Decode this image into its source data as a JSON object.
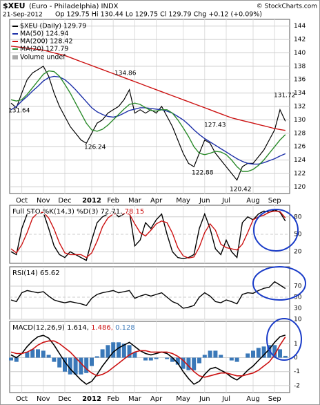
{
  "header": {
    "symbol": "$XEU",
    "name": "(Euro - Philadelphia) INDX",
    "credit": "© StockCharts.com",
    "date": "21-Sep-2012",
    "quote": "Op 129.75 Hi 130.44 Lo 129.75 Cl 129.79 Chg +0.12 (+0.09%)"
  },
  "chart_data": [
    {
      "type": "line",
      "categories": [
        null,
        null,
        "Oct",
        null,
        null,
        null,
        "Nov",
        null,
        null,
        null,
        "Dec",
        null,
        null,
        null,
        null,
        "2012",
        null,
        null,
        null,
        "Feb",
        null,
        null,
        null,
        "Mar",
        null,
        null,
        null,
        "Apr",
        null,
        null,
        null,
        null,
        "May",
        null,
        null,
        null,
        "Jun",
        null,
        null,
        null,
        "Jul",
        null,
        null,
        null,
        null,
        "Aug",
        null,
        null,
        null,
        "Sep",
        null,
        null
      ],
      "series": [
        {
          "name": "$XEU (Daily) 129.79",
          "color": "#000000",
          "values": [
            132.5,
            131.8,
            134,
            136,
            137,
            137.5,
            138,
            136.5,
            134,
            132,
            130.5,
            129,
            128,
            127,
            126.5,
            128,
            129.5,
            130,
            131,
            131.5,
            132,
            133,
            134.5,
            131,
            131.5,
            131,
            131.5,
            131,
            132,
            130.5,
            129,
            127,
            125,
            123.5,
            123,
            125,
            127,
            126.5,
            125,
            124,
            123,
            122,
            121,
            123,
            123.5,
            123.5,
            124.5,
            125.5,
            127,
            128.5,
            131.5,
            129.79
          ]
        },
        {
          "name": "MA(50) 124.94",
          "color": "#1c2fa8",
          "values": [
            131.5,
            132,
            132.8,
            133.5,
            134.3,
            135,
            135.8,
            136.3,
            136.5,
            136.4,
            136,
            135.3,
            134.5,
            133.6,
            132.7,
            131.8,
            131.2,
            130.8,
            130.5,
            130.4,
            130.6,
            131,
            131.4,
            131.6,
            131.8,
            131.8,
            131.7,
            131.6,
            131.5,
            131.3,
            131,
            130.5,
            130,
            129.3,
            128.5,
            127.8,
            127.2,
            126.7,
            126.2,
            125.7,
            125.2,
            124.7,
            124.2,
            123.8,
            123.5,
            123.4,
            123.4,
            123.6,
            123.9,
            124.2,
            124.6,
            124.94
          ]
        },
        {
          "name": "MA(200) 128.42",
          "color": "#cc1111",
          "values": [
            141.0,
            140.9,
            140.8,
            140.7,
            140.6,
            140.5,
            140.4,
            140.2,
            140.0,
            139.8,
            139.6,
            139.3,
            139.0,
            138.7,
            138.4,
            138.1,
            137.8,
            137.5,
            137.2,
            136.9,
            136.6,
            136.3,
            136.0,
            135.7,
            135.4,
            135.1,
            134.8,
            134.5,
            134.2,
            133.9,
            133.6,
            133.3,
            133.0,
            132.7,
            132.4,
            132.1,
            131.8,
            131.5,
            131.2,
            130.9,
            130.6,
            130.3,
            130.1,
            129.9,
            129.7,
            129.5,
            129.3,
            129.1,
            128.9,
            128.7,
            128.55,
            128.42
          ]
        },
        {
          "name": "MA(20) 127.79",
          "color": "#2a8a2a",
          "values": [
            133,
            132.8,
            133,
            133.8,
            134.8,
            135.8,
            136.8,
            137.3,
            137.2,
            136.5,
            135.3,
            134,
            132.5,
            131,
            129.5,
            128.5,
            128.3,
            128.6,
            129.2,
            130,
            130.8,
            131.6,
            132.3,
            132.5,
            132.3,
            131.8,
            131.4,
            131.3,
            131.5,
            131.5,
            131,
            130,
            128.8,
            127.5,
            126,
            125,
            124.8,
            125,
            125.3,
            125.2,
            124.8,
            124,
            123,
            122.3,
            122.3,
            122.6,
            123.2,
            124,
            125,
            126,
            127,
            127.79
          ]
        }
      ],
      "volume_label": "Volume undef",
      "annotations": [
        "131.64",
        "134.86",
        "126.24",
        "127.43",
        "122.88",
        "120.42",
        "131.72"
      ],
      "ylim": [
        119,
        145
      ],
      "yticks": [
        120,
        122,
        124,
        126,
        128,
        130,
        132,
        134,
        136,
        138,
        140,
        142,
        144
      ],
      "grid": true
    },
    {
      "type": "line",
      "title": "Full STO %K(14,3) %D(3)",
      "series": [
        {
          "label": "72.71,",
          "color": "#000000",
          "values": [
            20,
            15,
            60,
            85,
            90,
            85,
            88,
            60,
            30,
            15,
            10,
            20,
            15,
            10,
            5,
            40,
            70,
            80,
            85,
            90,
            80,
            85,
            90,
            30,
            40,
            70,
            60,
            75,
            85,
            50,
            20,
            10,
            8,
            10,
            15,
            60,
            85,
            60,
            25,
            15,
            40,
            20,
            10,
            70,
            80,
            75,
            85,
            90,
            88,
            92,
            88,
            72.71
          ]
        },
        {
          "label": "78.15",
          "color": "#cc1111",
          "values": [
            25,
            18,
            32,
            53,
            78,
            87,
            88,
            78,
            59,
            35,
            18,
            15,
            15,
            15,
            10,
            18,
            38,
            63,
            78,
            85,
            85,
            85,
            85,
            68,
            53,
            47,
            57,
            68,
            73,
            70,
            52,
            27,
            13,
            9,
            11,
            28,
            53,
            68,
            57,
            33,
            27,
            25,
            23,
            33,
            53,
            75,
            80,
            83,
            88,
            90,
            89,
            78.15
          ]
        }
      ],
      "ylim": [
        0,
        100
      ],
      "yticks": [
        20,
        50,
        80
      ],
      "grid": true
    },
    {
      "type": "line",
      "title": "RSI(14)",
      "series": [
        {
          "label": "65.62",
          "color": "#000000",
          "values": [
            45,
            42,
            58,
            62,
            60,
            58,
            60,
            52,
            45,
            42,
            40,
            42,
            40,
            38,
            35,
            48,
            55,
            58,
            60,
            62,
            58,
            60,
            62,
            48,
            52,
            55,
            52,
            55,
            58,
            50,
            42,
            38,
            30,
            32,
            35,
            50,
            58,
            52,
            42,
            40,
            45,
            42,
            38,
            55,
            58,
            57,
            62,
            66,
            68,
            78,
            72,
            65.62
          ]
        }
      ],
      "ylim": [
        10,
        105
      ],
      "yticks": [
        10,
        30,
        50,
        70
      ],
      "grid": true
    },
    {
      "type": "macd",
      "title": "MACD(12,26,9)",
      "series": [
        {
          "label": "1.614,",
          "color": "#000000",
          "values": [
            0.2,
            0,
            0.3,
            0.8,
            1.2,
            1.5,
            1.6,
            1.4,
            0.9,
            0.3,
            -0.3,
            -0.8,
            -1.2,
            -1.6,
            -1.9,
            -1.7,
            -1.2,
            -0.6,
            -0.1,
            0.4,
            0.7,
            0.9,
            1.1,
            0.8,
            0.5,
            0.3,
            0.2,
            0.3,
            0.4,
            0.3,
            0,
            -0.4,
            -1,
            -1.5,
            -1.9,
            -1.7,
            -1.2,
            -0.8,
            -0.7,
            -0.9,
            -1.1,
            -1.4,
            -1.6,
            -1.3,
            -0.9,
            -0.6,
            -0.2,
            0.2,
            0.6,
            1.1,
            1.5,
            1.614
          ]
        },
        {
          "label": "1.486,",
          "color": "#cc1111",
          "values": [
            0.4,
            0.3,
            0.3,
            0.4,
            0.6,
            0.9,
            1.1,
            1.2,
            1.2,
            1.0,
            0.7,
            0.4,
            0,
            -0.4,
            -0.8,
            -1.1,
            -1.3,
            -1.2,
            -1.0,
            -0.7,
            -0.4,
            -0.1,
            0.2,
            0.4,
            0.5,
            0.5,
            0.4,
            0.4,
            0.4,
            0.4,
            0.3,
            0.1,
            -0.2,
            -0.6,
            -1,
            -1.3,
            -1.4,
            -1.3,
            -1.2,
            -1.1,
            -1.1,
            -1.2,
            -1.3,
            -1.3,
            -1.2,
            -1.1,
            -0.9,
            -0.6,
            -0.3,
            0.2,
            0.9,
            1.486
          ]
        },
        {
          "label": "0.128",
          "color": "#3a78b8",
          "values": [
            -0.2,
            -0.3,
            0,
            0.4,
            0.6,
            0.6,
            0.5,
            0.2,
            -0.3,
            -0.7,
            -1.0,
            -1.2,
            -1.2,
            -1.2,
            -1.1,
            -0.6,
            0.1,
            0.6,
            0.9,
            1.1,
            1.1,
            1.0,
            0.9,
            0.4,
            0,
            -0.2,
            -0.2,
            -0.1,
            0,
            -0.1,
            -0.3,
            -0.5,
            -0.8,
            -0.9,
            -0.9,
            -0.4,
            0.2,
            0.5,
            0.5,
            0.2,
            0,
            -0.2,
            -0.3,
            0,
            0.3,
            0.5,
            0.7,
            0.8,
            0.9,
            0.9,
            0.6,
            0.128
          ]
        }
      ],
      "ylim": [
        -2.5,
        2.6
      ],
      "yticks": [
        -2,
        -1,
        0,
        1
      ],
      "grid": true
    }
  ]
}
